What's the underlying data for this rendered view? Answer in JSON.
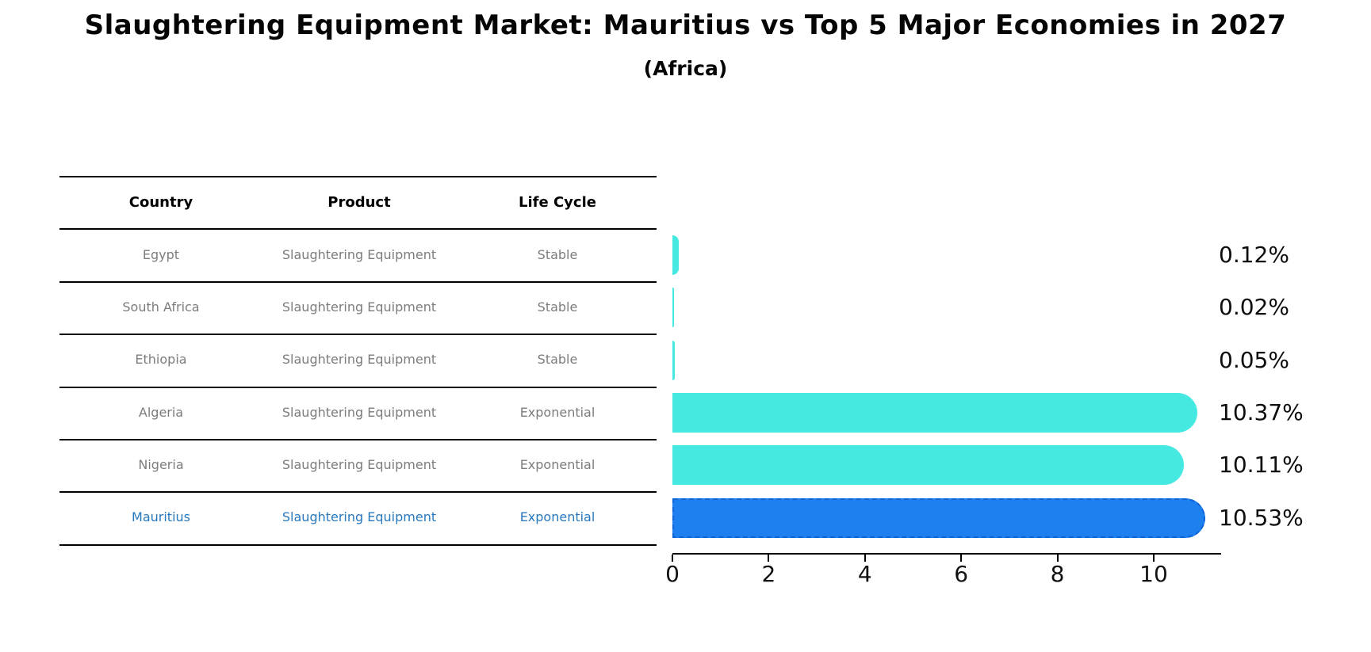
{
  "title": "Slaughtering Equipment Market: Mauritius vs Top 5 Major Economies in 2027",
  "subtitle": "(Africa)",
  "table": {
    "headers": [
      "Country",
      "Product",
      "Life Cycle"
    ],
    "rows": [
      {
        "country": "Egypt",
        "product": "Slaughtering Equipment",
        "life_cycle": "Stable"
      },
      {
        "country": "South Africa",
        "product": "Slaughtering Equipment",
        "life_cycle": "Stable"
      },
      {
        "country": "Ethiopia",
        "product": "Slaughtering Equipment",
        "life_cycle": "Stable"
      },
      {
        "country": "Algeria",
        "product": "Slaughtering Equipment",
        "life_cycle": "Exponential"
      },
      {
        "country": "Nigeria",
        "product": "Slaughtering Equipment",
        "life_cycle": "Exponential"
      },
      {
        "country": "Mauritius",
        "product": "Slaughtering Equipment",
        "life_cycle": "Exponential"
      }
    ],
    "highlight_row_index": 5
  },
  "chart_data": {
    "type": "bar",
    "orientation": "horizontal",
    "categories": [
      "Egypt",
      "South Africa",
      "Ethiopia",
      "Algeria",
      "Nigeria",
      "Mauritius"
    ],
    "values": [
      0.12,
      0.02,
      0.05,
      10.37,
      10.11,
      10.53
    ],
    "labels": [
      "0.12%",
      "0.02%",
      "0.05%",
      "10.37%",
      "10.11%",
      "10.53%"
    ],
    "xticks": [
      0,
      2,
      4,
      6,
      8,
      10
    ],
    "xlim": [
      0,
      11.35
    ],
    "grid": false,
    "legend": false,
    "bar_color": "#45e9e1",
    "highlight_bar_color": "#1d80ee",
    "highlight_border_color": "#0e62d9",
    "highlight_text_color": "#2878be",
    "highlight_index": 5
  }
}
